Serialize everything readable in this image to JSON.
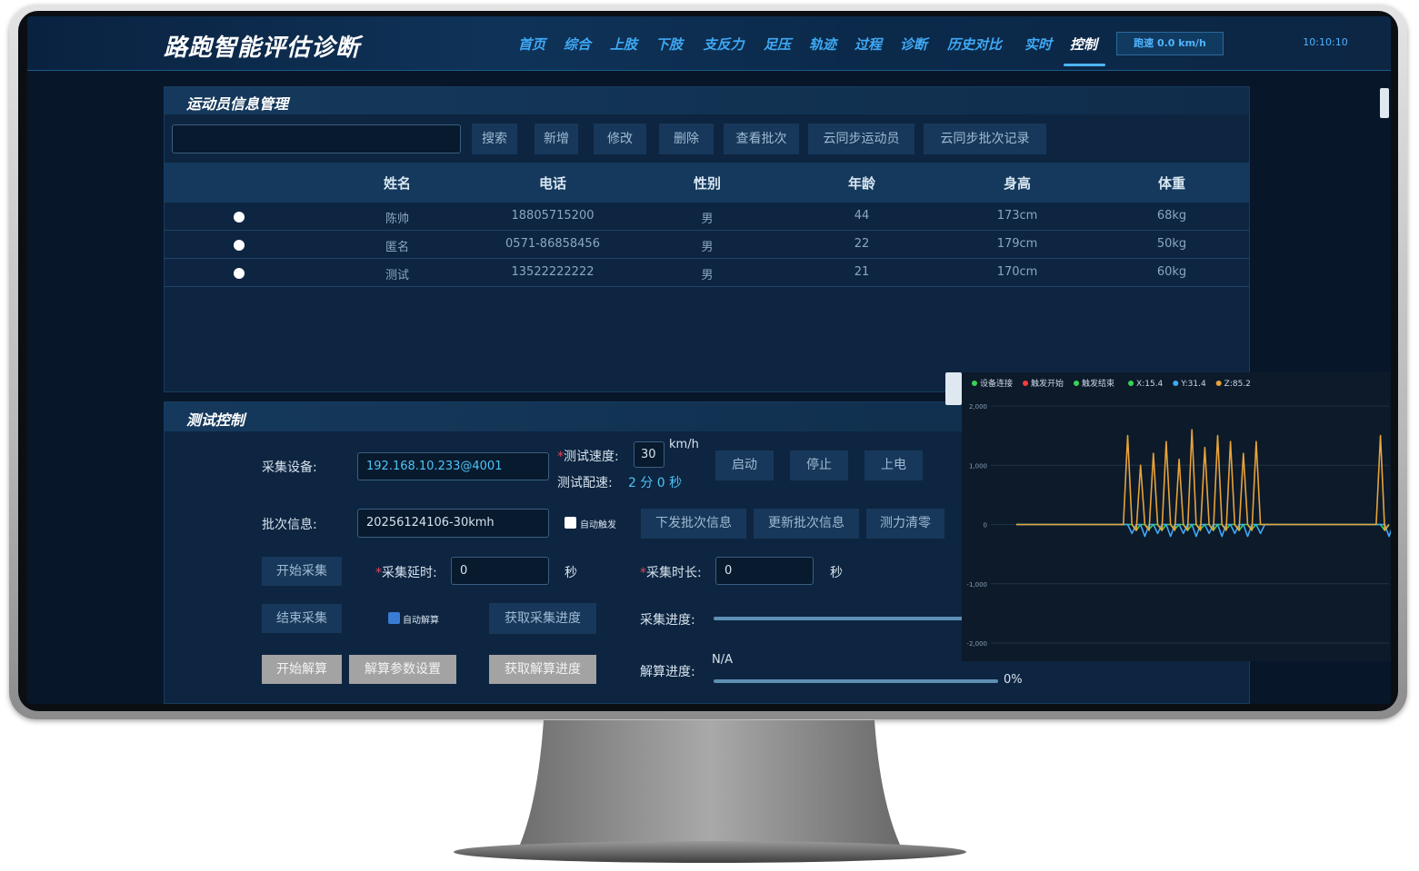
{
  "header": {
    "title": "路跑智能评估诊断",
    "nav": [
      "首页",
      "综合",
      "上肢",
      "下肢",
      "支反力",
      "足压",
      "轨迹",
      "过程",
      "诊断",
      "历史对比",
      "实时",
      "控制"
    ],
    "speed": "跑速 0.0 km/h",
    "time": "10:10:10"
  },
  "athlete_panel": {
    "title": "运动员信息管理",
    "buttons": [
      "搜索",
      "新增",
      "修改",
      "删除",
      "查看批次",
      "云同步运动员",
      "云同步批次记录"
    ],
    "table": {
      "columns": [
        "姓名",
        "电话",
        "性别",
        "年龄",
        "身高",
        "体重"
      ],
      "rows": [
        [
          "陈帅",
          "18805715200",
          "男",
          "44",
          "173cm",
          "68kg"
        ],
        [
          "匿名",
          "0571-86858456",
          "男",
          "22",
          "179cm",
          "50kg"
        ],
        [
          "测试",
          "13522222222",
          "男",
          "21",
          "170cm",
          "60kg"
        ]
      ]
    }
  },
  "test_panel": {
    "title": "测试控制",
    "device_label": "采集设备:",
    "device_value": "192.168.10.233@4001",
    "speed_label": "测试速度:",
    "speed_value": "30",
    "speed_unit": "km/h",
    "pace_label": "测试配速:",
    "pace_value": "2 分 0 秒",
    "power_buttons": [
      "启动",
      "停止",
      "上电"
    ],
    "batch_label": "批次信息:",
    "batch_value": "20256124106-30kmh",
    "auto_trigger": "自动触发",
    "batch_buttons": [
      "下发批次信息",
      "更新批次信息",
      "测力清零"
    ],
    "start_collect": "开始采集",
    "delay_label": "采集延时:",
    "delay_value": "0",
    "second": "秒",
    "duration_label": "采集时长:",
    "duration_value": "0",
    "end_collect": "结束采集",
    "auto_solve": "自动解算",
    "get_collect_progress": "获取采集进度",
    "collect_progress_label": "采集进度:",
    "start_solve": "开始解算",
    "solve_settings": "解算参数设置",
    "get_solve_progress": "获取解算进度",
    "solve_progress_label": "解算进度:",
    "solve_status": "N/A",
    "solve_percent": "0%"
  },
  "chart": {
    "type": "line",
    "status_legend": [
      {
        "name": "设备连接",
        "color": "#39d353"
      },
      {
        "name": "触发开始",
        "color": "#ff3b3b"
      },
      {
        "name": "触发结束",
        "color": "#39d353"
      }
    ],
    "ylim": [
      -2000,
      2000
    ],
    "yticks": [
      {
        "value": 2000,
        "label": "2,000"
      },
      {
        "value": 1000,
        "label": "1,000"
      },
      0,
      {
        "value": -1000,
        "label": "-1,000"
      },
      {
        "value": -2000,
        "label": "-2,000"
      }
    ],
    "grid": true,
    "series": [
      {
        "name": "X:15.4",
        "color": "#39d353",
        "values": [
          0,
          0,
          0,
          0,
          0,
          0,
          0,
          0,
          0,
          0,
          0,
          0,
          0,
          0,
          0,
          0,
          0,
          0,
          0,
          0,
          0,
          0,
          0,
          0,
          0,
          0,
          0,
          0,
          -100,
          0,
          0,
          -80,
          0,
          0,
          -100,
          0,
          0,
          -80,
          0,
          0,
          -100,
          0,
          0,
          -80,
          0,
          0,
          -100,
          0,
          0,
          -80,
          0,
          0,
          -100,
          0,
          0,
          -80,
          0,
          0,
          0,
          0,
          0,
          0,
          0,
          0,
          0,
          0,
          0,
          0,
          0,
          0,
          0,
          0,
          0,
          0,
          0,
          0,
          0,
          0,
          0,
          0,
          0,
          0,
          0,
          0,
          0,
          0,
          -100,
          0
        ]
      },
      {
        "name": "Y:31.4",
        "color": "#3fa9f5",
        "values": [
          0,
          0,
          0,
          0,
          0,
          0,
          0,
          0,
          0,
          0,
          0,
          0,
          0,
          0,
          0,
          0,
          0,
          0,
          0,
          0,
          0,
          0,
          0,
          0,
          0,
          0,
          0,
          -150,
          0,
          0,
          -200,
          0,
          0,
          -150,
          0,
          0,
          -200,
          0,
          0,
          -150,
          0,
          0,
          -200,
          0,
          0,
          -150,
          0,
          0,
          -200,
          0,
          0,
          -150,
          0,
          0,
          -200,
          0,
          0,
          -150,
          0,
          0,
          0,
          0,
          0,
          0,
          0,
          0,
          0,
          0,
          0,
          0,
          0,
          0,
          0,
          0,
          0,
          0,
          0,
          0,
          0,
          0,
          0,
          0,
          0,
          0,
          0,
          0,
          0,
          -200,
          0
        ]
      },
      {
        "name": "Z:85.2",
        "color": "#e8a23a",
        "values": [
          0,
          0,
          0,
          0,
          0,
          0,
          0,
          0,
          0,
          0,
          0,
          0,
          0,
          0,
          0,
          0,
          0,
          0,
          0,
          0,
          0,
          0,
          0,
          0,
          0,
          0,
          1500,
          0,
          -100,
          1000,
          0,
          -100,
          1200,
          0,
          -100,
          1400,
          0,
          -100,
          1100,
          0,
          -100,
          1600,
          0,
          -100,
          1300,
          0,
          -100,
          1500,
          0,
          -100,
          1400,
          0,
          -100,
          1200,
          0,
          -100,
          1400,
          0,
          0,
          0,
          0,
          0,
          0,
          0,
          0,
          0,
          0,
          0,
          0,
          0,
          0,
          0,
          0,
          0,
          0,
          0,
          0,
          0,
          0,
          0,
          0,
          0,
          0,
          0,
          0,
          1500,
          -100,
          0
        ]
      }
    ]
  }
}
